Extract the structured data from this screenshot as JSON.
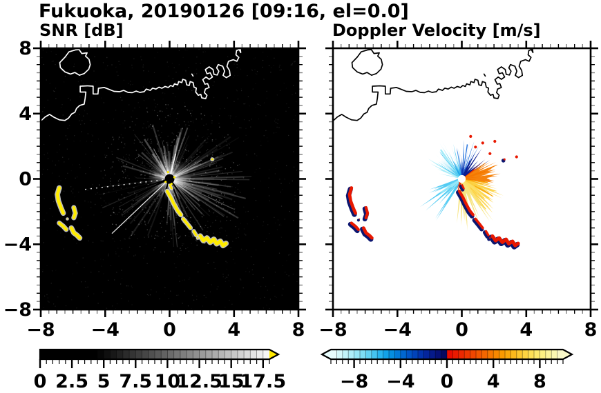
{
  "title": "Fukuoka, 20190126 [09:16, el=0.0]",
  "chart_data": {
    "type": "heatmap",
    "suptitle": "Fukuoka, 20190126 [09:16, el=0.0]",
    "station": "Fukuoka",
    "date": "20190126",
    "time": "09:16",
    "elevation": "0.0",
    "panels": [
      {
        "id": "snr",
        "title": "SNR [dB]",
        "units": "dB",
        "xlim": [
          -8,
          8
        ],
        "ylim": [
          -8,
          8
        ],
        "x_tick_labels": [
          "−8",
          "−4",
          "0",
          "4",
          "8"
        ],
        "y_tick_labels": [
          "8",
          "4",
          "0",
          "−4",
          "−8"
        ],
        "background": "#000000",
        "colorbar": {
          "min": 0,
          "max": 18,
          "segment_step": 0.5,
          "tick_values": [
            0,
            2.5,
            5,
            7.5,
            10,
            12.5,
            15,
            17.5
          ],
          "tick_labels": [
            "0",
            "2.5",
            "5",
            "7.5",
            "10",
            "12.5",
            "15",
            "17.5"
          ],
          "left_arrow": false,
          "right_arrow": true,
          "right_arrow_color": "#ffe800",
          "colors": [
            "#000000",
            "#000000",
            "#000000",
            "#000000",
            "#000000",
            "#000000",
            "#000000",
            "#000000",
            "#000000",
            "#060606",
            "#0f0f0f",
            "#181818",
            "#212121",
            "#2b2b2b",
            "#343434",
            "#3d3d3d",
            "#464646",
            "#505050",
            "#595959",
            "#626262",
            "#6b6b6b",
            "#757575",
            "#7e7e7e",
            "#878787",
            "#909090",
            "#9a9a9a",
            "#a3a3a3",
            "#acacac",
            "#b5b5b5",
            "#bfbfbf",
            "#c8c8c8",
            "#d1d1d1",
            "#dadada",
            "#e4e4e4",
            "#ededed",
            "#f6f6f6"
          ]
        }
      },
      {
        "id": "vel",
        "title": "Doppler Velocity [m/s]",
        "units": "m/s",
        "xlim": [
          -8,
          8
        ],
        "ylim": [
          -8,
          8
        ],
        "x_tick_labels": [
          "−8",
          "−4",
          "0",
          "4",
          "8"
        ],
        "y_tick_labels": [
          "8",
          "4",
          "0",
          "−4",
          "−8"
        ],
        "background": "#ffffff",
        "colorbar": {
          "min": -10,
          "max": 10,
          "segment_step": 0.5,
          "tick_values": [
            -8,
            -4,
            0,
            4,
            8
          ],
          "tick_labels": [
            "−8",
            "−4",
            "0",
            "4",
            "8"
          ],
          "left_arrow": true,
          "right_arrow": true,
          "colors": [
            "#e8fdfd",
            "#d6f9fb",
            "#c2f4f9",
            "#aeeef8",
            "#97e7f6",
            "#7edef4",
            "#62d2f2",
            "#45c4f0",
            "#28b4ee",
            "#12a2e8",
            "#058ee0",
            "#027ad8",
            "#0167d0",
            "#0154c6",
            "#0143ba",
            "#0233ac",
            "#04259c",
            "#051a8a",
            "#061076",
            "#070960",
            "#e80c00",
            "#ea1a00",
            "#ec2800",
            "#ee3700",
            "#f04600",
            "#f25600",
            "#f46600",
            "#f67700",
            "#f78800",
            "#f99900",
            "#faa90b",
            "#fbb91c",
            "#fcc72e",
            "#fdd441",
            "#fddf55",
            "#fde96b",
            "#fcf082",
            "#fbf49a",
            "#faf7b1",
            "#f9f8c8"
          ]
        }
      }
    ],
    "tick_values": {
      "major": [
        -8,
        -4,
        0,
        4,
        8
      ],
      "minor_step": 0.5
    },
    "radar_center_xy": [
      0,
      0
    ],
    "coastline_polylines": [
      [
        [
          -5.85,
          7.9
        ],
        [
          -6.25,
          7.78
        ],
        [
          -6.5,
          7.45
        ],
        [
          -6.82,
          7.12
        ],
        [
          -6.78,
          6.82
        ],
        [
          -6.5,
          6.55
        ],
        [
          -6.15,
          6.42
        ],
        [
          -5.88,
          6.52
        ],
        [
          -5.6,
          6.35
        ],
        [
          -5.3,
          6.45
        ],
        [
          -5.02,
          6.72
        ],
        [
          -4.93,
          7.0
        ],
        [
          -5.0,
          7.32
        ],
        [
          -5.22,
          7.52
        ],
        [
          -5.12,
          7.72
        ],
        [
          -5.45,
          7.68
        ],
        [
          -5.62,
          7.92
        ],
        [
          -5.85,
          7.9
        ]
      ],
      [
        [
          -8,
          3.55
        ],
        [
          -7.72,
          3.8
        ],
        [
          -7.45,
          3.95
        ],
        [
          -7.18,
          3.78
        ],
        [
          -6.85,
          3.62
        ],
        [
          -6.5,
          3.58
        ],
        [
          -6.28,
          3.72
        ],
        [
          -6.08,
          3.98
        ],
        [
          -5.88,
          4.08
        ],
        [
          -5.78,
          4.32
        ],
        [
          -5.58,
          4.5
        ],
        [
          -5.3,
          4.58
        ],
        [
          -5.24,
          4.95
        ],
        [
          -5.2,
          5.32
        ],
        [
          -5.55,
          5.32
        ],
        [
          -5.55,
          5.68
        ],
        [
          -5.1,
          5.7
        ],
        [
          -4.75,
          5.68
        ],
        [
          -4.75,
          5.2
        ],
        [
          -4.45,
          5.2
        ],
        [
          -4.42,
          5.55
        ],
        [
          -4.05,
          5.6
        ],
        [
          -3.75,
          5.48
        ],
        [
          -3.45,
          5.36
        ],
        [
          -3.1,
          5.34
        ],
        [
          -2.85,
          5.42
        ],
        [
          -2.58,
          5.3
        ],
        [
          -2.32,
          5.28
        ],
        [
          -2.08,
          5.38
        ],
        [
          -1.85,
          5.3
        ],
        [
          -1.58,
          5.34
        ],
        [
          -1.45,
          5.5
        ],
        [
          -1.2,
          5.42
        ],
        [
          -1.05,
          5.56
        ],
        [
          -0.85,
          5.5
        ],
        [
          -0.65,
          5.62
        ],
        [
          -0.48,
          5.55
        ],
        [
          -0.28,
          5.66
        ],
        [
          -0.08,
          5.6
        ],
        [
          0.06,
          5.72
        ],
        [
          0.22,
          5.66
        ],
        [
          0.3,
          5.82
        ],
        [
          0.5,
          5.76
        ],
        [
          0.56,
          5.96
        ],
        [
          0.76,
          5.9
        ],
        [
          0.82,
          6.1
        ],
        [
          1.0,
          6.04
        ],
        [
          1.06,
          5.76
        ],
        [
          1.22,
          5.72
        ],
        [
          1.28,
          5.96
        ],
        [
          1.46,
          5.9
        ],
        [
          1.52,
          5.62
        ],
        [
          1.66,
          5.56
        ],
        [
          1.62,
          5.32
        ],
        [
          1.78,
          5.12
        ],
        [
          1.94,
          5.18
        ],
        [
          2.0,
          4.96
        ],
        [
          2.24,
          4.92
        ],
        [
          2.32,
          5.12
        ],
        [
          2.16,
          5.28
        ],
        [
          2.22,
          5.5
        ],
        [
          2.46,
          5.6
        ],
        [
          2.36,
          5.84
        ],
        [
          2.2,
          5.8
        ],
        [
          2.06,
          6.08
        ],
        [
          2.26,
          6.24
        ],
        [
          2.46,
          6.1
        ],
        [
          2.66,
          6.24
        ],
        [
          2.52,
          6.5
        ],
        [
          2.32,
          6.44
        ],
        [
          2.22,
          6.7
        ],
        [
          2.46,
          6.86
        ],
        [
          2.7,
          6.7
        ],
        [
          2.76,
          6.4
        ],
        [
          2.96,
          6.36
        ],
        [
          3.06,
          6.6
        ],
        [
          2.92,
          6.8
        ],
        [
          3.02,
          7.0
        ],
        [
          3.3,
          6.9
        ],
        [
          3.42,
          6.6
        ],
        [
          3.32,
          6.34
        ],
        [
          3.52,
          6.2
        ],
        [
          3.76,
          6.34
        ],
        [
          3.72,
          6.64
        ],
        [
          3.56,
          6.9
        ],
        [
          3.66,
          7.2
        ],
        [
          3.96,
          7.3
        ],
        [
          4.18,
          7.2
        ],
        [
          4.3,
          7.44
        ],
        [
          4.12,
          7.6
        ],
        [
          4.16,
          7.86
        ],
        [
          4.32,
          7.92
        ],
        [
          4.42,
          7.74
        ],
        [
          4.38,
          8.02
        ]
      ],
      [
        [
          1.38,
          6.42
        ],
        [
          1.46,
          6.3
        ]
      ]
    ],
    "snr_features": {
      "glow_radius": 1.35,
      "noise_uniform": {
        "n": 900,
        "opacity": 0.13
      },
      "noise_radial": {
        "n": 480,
        "rmax": 4.6,
        "opacity": 0.3
      },
      "ray_fans": [
        {
          "a0": 10,
          "a1": 170,
          "n": 90,
          "l0": 0.4,
          "l1": 3.6,
          "o0": 0.05,
          "o1": 0.3
        },
        {
          "a0": -30,
          "a1": 45,
          "n": 55,
          "l0": 0.8,
          "l1": 5.3,
          "o0": 0.04,
          "o1": 0.22
        },
        {
          "a0": -95,
          "a1": -15,
          "n": 60,
          "l0": 0.5,
          "l1": 4.2,
          "o0": 0.05,
          "o1": 0.26
        },
        {
          "a0": 175,
          "a1": 250,
          "n": 26,
          "l0": 0.6,
          "l1": 4.6,
          "o0": 0.03,
          "o1": 0.15
        },
        {
          "a0": 150,
          "a1": 180,
          "n": 14,
          "l0": 0.4,
          "l1": 2.2,
          "o0": 0.04,
          "o1": 0.14
        }
      ],
      "special_white_rays": [
        {
          "a": 76,
          "l": 1.6,
          "w": 1.3,
          "o": 0.95
        },
        {
          "a": 223,
          "l": 4.9,
          "w": 1.3,
          "o": 0.9
        },
        {
          "a": 118,
          "l": 2.1,
          "w": 1.0,
          "o": 0.5
        },
        {
          "a": 30,
          "l": 2.3,
          "w": 1.0,
          "o": 0.45
        }
      ],
      "dashed_white_ray": {
        "a": 187,
        "l": 5.5,
        "o": 0.85
      },
      "black_rays": [
        {
          "a": 197,
          "l": 5.3
        },
        {
          "a": 204,
          "l": 6.2
        },
        {
          "a": 251,
          "l": 4.3
        },
        {
          "a": 292,
          "l": 3.5
        },
        {
          "a": 307,
          "l": 2.7
        }
      ],
      "center_disk": {
        "r": 0.3,
        "color": "#000000"
      },
      "center_specks": [
        [
          0.12,
          -0.3
        ],
        [
          -0.25,
          -0.18
        ],
        [
          0.3,
          0.1
        ],
        [
          -0.1,
          0.42
        ]
      ]
    },
    "vel_features": {
      "layers": [
        {
          "type": "fan",
          "a0": 98,
          "a1": 168,
          "rIn": 0.25,
          "rOut": 2.7,
          "n": 46,
          "jag": 1.6,
          "color": "#a5ebf8",
          "op": 1
        },
        {
          "type": "fan",
          "a0": 104,
          "a1": 152,
          "rIn": 0.25,
          "rOut": 2.3,
          "n": 40,
          "jag": 1.2,
          "color": "#46c6f0",
          "op": 0.9
        },
        {
          "type": "fan",
          "a0": 100,
          "a1": 124,
          "rIn": 0.2,
          "rOut": 1.5,
          "n": 24,
          "jag": 1.0,
          "color": "#16a2e6",
          "op": 0.9
        },
        {
          "type": "fan",
          "a0": 60,
          "a1": 100,
          "rIn": 0.25,
          "rOut": 2.5,
          "n": 36,
          "jag": 1.3,
          "color": "#2070dc",
          "op": 0.95
        },
        {
          "type": "fan",
          "a0": 63,
          "a1": 96,
          "rIn": 0.2,
          "rOut": 1.6,
          "n": 26,
          "jag": 1.0,
          "color": "#0a34ae",
          "op": 0.95
        },
        {
          "type": "spikes",
          "a0": 30,
          "a1": 64,
          "rIn": 0.6,
          "rOut": 2.4,
          "n": 12,
          "w": 0.1,
          "color": "#0b1e90",
          "op": 1
        },
        {
          "type": "fan",
          "a0": -14,
          "a1": 38,
          "rIn": 0.2,
          "rOut": 1.75,
          "n": 40,
          "jag": 1.2,
          "color": "#e93000",
          "op": 1
        },
        {
          "type": "fan",
          "a0": -6,
          "a1": 34,
          "rIn": 1.1,
          "rOut": 2.45,
          "n": 30,
          "jag": 1.1,
          "color": "#f57c00",
          "op": 0.95
        },
        {
          "type": "fan",
          "a0": -52,
          "a1": -6,
          "rIn": 0.3,
          "rOut": 2.4,
          "n": 38,
          "jag": 1.2,
          "color": "#f9a800",
          "op": 0.95
        },
        {
          "type": "fan",
          "a0": -58,
          "a1": -14,
          "rIn": 0.7,
          "rOut": 2.9,
          "n": 34,
          "jag": 1.0,
          "color": "#fcd240",
          "op": 0.9
        },
        {
          "type": "spikes",
          "a0": -98,
          "a1": -52,
          "rIn": 0.7,
          "rOut": 3.4,
          "n": 22,
          "w": 0.16,
          "color": "#f7e47e",
          "op": 0.95
        },
        {
          "type": "fan",
          "a0": -56,
          "a1": -30,
          "rIn": 0.5,
          "rOut": 2.0,
          "n": 24,
          "jag": 1.0,
          "color": "#fbe06a",
          "op": 0.85
        },
        {
          "type": "spikes",
          "a0": 196,
          "a1": 238,
          "rIn": 0.5,
          "rOut": 3.25,
          "n": 20,
          "w": 0.14,
          "color": "#4ec9f2",
          "op": 0.95
        },
        {
          "type": "fan",
          "a0": 200,
          "a1": 234,
          "rIn": 0.25,
          "rOut": 1.9,
          "n": 24,
          "jag": 1.1,
          "color": "#9febfa",
          "op": 0.9
        },
        {
          "type": "spikes",
          "a0": 228,
          "a1": 258,
          "rIn": 0.3,
          "rOut": 1.3,
          "n": 8,
          "w": 0.09,
          "color": "#e93000",
          "op": 0.9
        }
      ],
      "red_specks": [
        [
          0.85,
          1.95
        ],
        [
          1.3,
          2.2
        ],
        [
          1.75,
          1.55
        ],
        [
          2.05,
          2.3
        ],
        [
          0.55,
          2.6
        ],
        [
          3.4,
          1.35
        ]
      ],
      "center_disk": {
        "r": 0.24,
        "color": "#ffffff"
      }
    },
    "ship_tracks": [
      {
        "pts": [
          [
            -0.15,
            -0.75
          ],
          [
            0.08,
            -1.15
          ],
          [
            0.25,
            -1.5
          ],
          [
            0.5,
            -1.95
          ],
          [
            0.7,
            -2.2
          ]
        ],
        "w": 0.18
      },
      {
        "pts": [
          [
            0.85,
            -2.45
          ],
          [
            1.1,
            -2.75
          ],
          [
            1.3,
            -3.0
          ]
        ],
        "w": 0.16
      },
      {
        "pts": [
          [
            1.5,
            -3.2
          ],
          [
            1.65,
            -3.45
          ]
        ],
        "w": 0.14
      },
      {
        "pts": [
          [
            1.9,
            -3.5
          ],
          [
            2.1,
            -3.78
          ],
          [
            2.32,
            -3.62
          ],
          [
            2.52,
            -3.88
          ],
          [
            2.75,
            -3.7
          ],
          [
            2.92,
            -3.97
          ],
          [
            3.15,
            -3.82
          ],
          [
            3.32,
            -4.08
          ],
          [
            3.5,
            -3.95
          ]
        ],
        "w": 0.22
      },
      {
        "pts": [
          [
            1.75,
            -3.62
          ]
        ],
        "w": 0.1
      },
      {
        "pts": [
          [
            0.02,
            -0.38
          ],
          [
            0.12,
            -0.58
          ]
        ],
        "w": 0.12
      },
      {
        "pts": [
          [
            -6.85,
            -0.55
          ],
          [
            -6.97,
            -0.95
          ],
          [
            -6.9,
            -1.35
          ],
          [
            -6.75,
            -1.75
          ],
          [
            -6.6,
            -2.1
          ]
        ],
        "w": 0.2
      },
      {
        "pts": [
          [
            -5.95,
            -1.75
          ],
          [
            -5.85,
            -2.1
          ],
          [
            -5.95,
            -2.38
          ]
        ],
        "w": 0.18
      },
      {
        "pts": [
          [
            -6.85,
            -2.7
          ],
          [
            -6.6,
            -2.9
          ],
          [
            -6.42,
            -3.1
          ]
        ],
        "w": 0.18
      },
      {
        "pts": [
          [
            -6.1,
            -3.0
          ],
          [
            -5.95,
            -3.3
          ],
          [
            -5.75,
            -3.45
          ],
          [
            -5.58,
            -3.62
          ]
        ],
        "w": 0.2
      },
      {
        "pts": [
          [
            -6.35,
            -2.45
          ]
        ],
        "w": 0.07
      },
      {
        "pts": [
          [
            2.65,
            1.2
          ]
        ],
        "w": 0.13
      }
    ],
    "snr_track_style": {
      "fill": "#ffec00",
      "halo": "#dedede"
    },
    "vel_track_style": {
      "fill": "#e81800",
      "shadow": "#0c1670"
    }
  }
}
